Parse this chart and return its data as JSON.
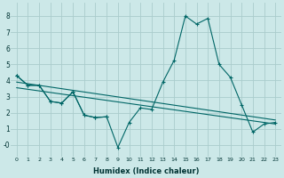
{
  "xlabel": "Humidex (Indice chaleur)",
  "bg_color": "#cce8e8",
  "grid_color": "#aacccc",
  "line_color": "#006666",
  "xlim": [
    -0.5,
    23.5
  ],
  "ylim": [
    -0.7,
    8.8
  ],
  "xticks": [
    0,
    1,
    2,
    3,
    4,
    5,
    6,
    7,
    8,
    9,
    10,
    11,
    12,
    13,
    14,
    15,
    16,
    17,
    18,
    19,
    20,
    21,
    22,
    23
  ],
  "yticks": [
    0,
    1,
    2,
    3,
    4,
    5,
    6,
    7,
    8
  ],
  "ytick_labels": [
    "-0",
    "1",
    "2",
    "3",
    "4",
    "5",
    "6",
    "7",
    "8"
  ],
  "line_main_x": [
    0,
    1,
    2,
    3,
    4,
    5,
    6,
    7,
    8,
    9,
    10,
    11,
    12,
    13,
    14,
    15,
    16,
    17,
    18,
    19,
    20,
    21,
    22,
    23
  ],
  "line_main_y": [
    4.3,
    3.7,
    3.7,
    2.7,
    2.6,
    3.3,
    1.85,
    1.7,
    1.75,
    -0.15,
    1.4,
    2.3,
    2.2,
    3.9,
    5.25,
    8.0,
    7.5,
    7.85,
    5.0,
    4.2,
    2.5,
    0.8,
    1.3,
    1.4
  ],
  "line_short_x": [
    0,
    1,
    2,
    3,
    4,
    5,
    6,
    7,
    8
  ],
  "line_short_y": [
    4.3,
    3.7,
    3.7,
    2.7,
    2.6,
    3.3,
    1.85,
    1.7,
    1.75
  ],
  "trend1_x": [
    0,
    23
  ],
  "trend1_y": [
    3.9,
    1.55
  ],
  "trend2_x": [
    0,
    23
  ],
  "trend2_y": [
    3.55,
    1.3
  ]
}
